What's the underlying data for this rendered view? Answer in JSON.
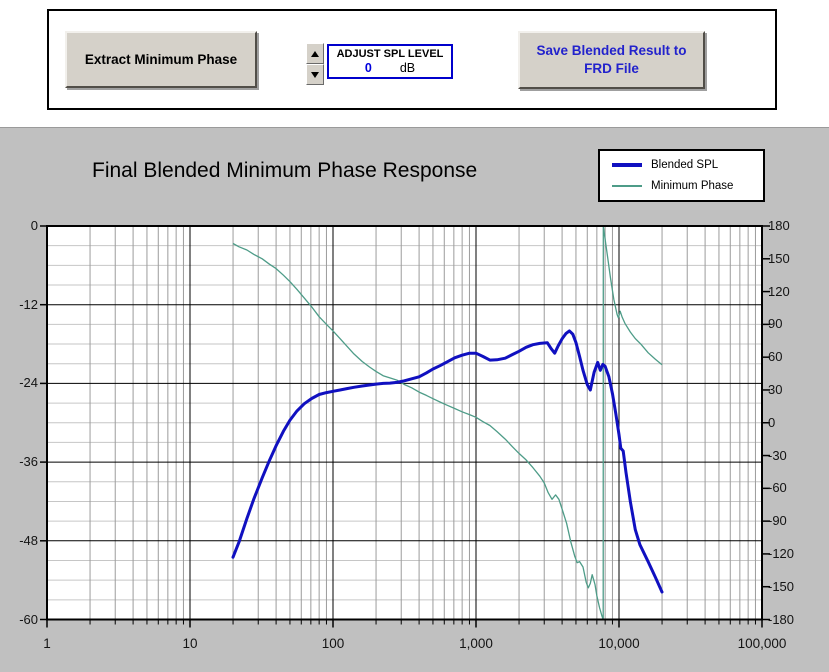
{
  "toolbar": {
    "extract_button_label": "Extract Minimum Phase",
    "adjust_spl": {
      "label": "ADJUST SPL LEVEL",
      "value": "0",
      "unit": "dB"
    },
    "save_button_line1": "Save Blended Result to",
    "save_button_line2": "FRD File"
  },
  "colors": {
    "chart_bg": "#c0c0c0",
    "plot_bg": "#ffffff",
    "grid_major": "#000000",
    "grid_minor_v": "#9c9c9c",
    "grid_minor_h": "#c6c6c6",
    "spl_line": "#1010c0",
    "phase_line": "#4e9c88",
    "button_face": "#d5d1c9",
    "save_button_text": "#2222cc",
    "spl_value_text": "#0000dd",
    "spl_box_border": "#0000cc"
  },
  "chart_data": {
    "type": "line",
    "title": "Final Blended Minimum Phase Response",
    "x_axis": {
      "scale": "log",
      "min": 1,
      "max": 100000,
      "tick_values": [
        1,
        10,
        100,
        1000,
        10000,
        100000
      ],
      "tick_labels": [
        "1",
        "10",
        "100",
        "1,000",
        "10,000",
        "100,000"
      ]
    },
    "y_left_axis": {
      "min": -60,
      "max": 0,
      "major_step": 12,
      "minor_step": 3,
      "tick_values": [
        0,
        -12,
        -24,
        -36,
        -48,
        -60
      ],
      "tick_labels": [
        "0",
        "-12",
        "-24",
        "-36",
        "-48",
        "-60"
      ]
    },
    "y_right_axis": {
      "min": -180,
      "max": 180,
      "major_step": 30,
      "tick_values": [
        180,
        150,
        120,
        90,
        60,
        30,
        0,
        -30,
        -60,
        -90,
        -120,
        -150,
        -180
      ],
      "tick_labels": [
        "180",
        "150",
        "120",
        "90",
        "60",
        "30",
        "0",
        "-30",
        "-60",
        "-90",
        "-120",
        "-150",
        "-180"
      ]
    },
    "legend": [
      {
        "label": "Blended SPL",
        "color": "#1010c0",
        "thickness": 4
      },
      {
        "label": "Minimum Phase",
        "color": "#4e9c88",
        "thickness": 2
      }
    ],
    "series": [
      {
        "name": "Blended SPL",
        "axis": "left",
        "color": "#1010c0",
        "width": 3,
        "points": [
          [
            20,
            -50.5
          ],
          [
            22,
            -48.2
          ],
          [
            25,
            -44.6
          ],
          [
            28,
            -41.6
          ],
          [
            32,
            -38.4
          ],
          [
            36,
            -35.7
          ],
          [
            40,
            -33.5
          ],
          [
            45,
            -31.3
          ],
          [
            50,
            -29.6
          ],
          [
            56,
            -28.2
          ],
          [
            63,
            -27.1
          ],
          [
            71,
            -26.3
          ],
          [
            80,
            -25.7
          ],
          [
            90,
            -25.4
          ],
          [
            100,
            -25.2
          ],
          [
            112,
            -25.0
          ],
          [
            125,
            -24.8
          ],
          [
            140,
            -24.6
          ],
          [
            160,
            -24.4
          ],
          [
            180,
            -24.25
          ],
          [
            200,
            -24.1
          ],
          [
            224,
            -24.0
          ],
          [
            250,
            -23.95
          ],
          [
            280,
            -23.85
          ],
          [
            315,
            -23.6
          ],
          [
            355,
            -23.3
          ],
          [
            400,
            -23.0
          ],
          [
            450,
            -22.4
          ],
          [
            500,
            -21.8
          ],
          [
            560,
            -21.3
          ],
          [
            630,
            -20.7
          ],
          [
            710,
            -20.1
          ],
          [
            800,
            -19.7
          ],
          [
            900,
            -19.4
          ],
          [
            1000,
            -19.4
          ],
          [
            1120,
            -19.9
          ],
          [
            1250,
            -20.45
          ],
          [
            1400,
            -20.4
          ],
          [
            1600,
            -20.15
          ],
          [
            1800,
            -19.6
          ],
          [
            2000,
            -19.1
          ],
          [
            2240,
            -18.5
          ],
          [
            2500,
            -18.1
          ],
          [
            2800,
            -17.9
          ],
          [
            3150,
            -17.8
          ],
          [
            3350,
            -18.7
          ],
          [
            3550,
            -19.4
          ],
          [
            3750,
            -18.3
          ],
          [
            4000,
            -17.2
          ],
          [
            4250,
            -16.4
          ],
          [
            4500,
            -16.0
          ],
          [
            4750,
            -16.5
          ],
          [
            5000,
            -17.8
          ],
          [
            5300,
            -19.9
          ],
          [
            5600,
            -22.0
          ],
          [
            6000,
            -24.2
          ],
          [
            6300,
            -25.0
          ],
          [
            6700,
            -22.3
          ],
          [
            7100,
            -20.8
          ],
          [
            7400,
            -22.0
          ],
          [
            7700,
            -21.1
          ],
          [
            8000,
            -21.4
          ],
          [
            8500,
            -23.0
          ],
          [
            9000,
            -25.6
          ],
          [
            9500,
            -28.6
          ],
          [
            10000,
            -31.8
          ],
          [
            10300,
            -33.9
          ],
          [
            10700,
            -34.3
          ],
          [
            11200,
            -37.6
          ],
          [
            12000,
            -42.0
          ],
          [
            13000,
            -46.3
          ],
          [
            14000,
            -48.6
          ],
          [
            16000,
            -51.2
          ],
          [
            18000,
            -53.6
          ],
          [
            20000,
            -55.8
          ]
        ]
      },
      {
        "name": "Minimum Phase",
        "axis": "right",
        "color": "#4e9c88",
        "width": 1.3,
        "points": [
          [
            20,
            164
          ],
          [
            22,
            161
          ],
          [
            25,
            158
          ],
          [
            28,
            154
          ],
          [
            32,
            150
          ],
          [
            36,
            145
          ],
          [
            40,
            141
          ],
          [
            45,
            135
          ],
          [
            50,
            129
          ],
          [
            56,
            122
          ],
          [
            63,
            114
          ],
          [
            71,
            106
          ],
          [
            80,
            97
          ],
          [
            90,
            90
          ],
          [
            100,
            84
          ],
          [
            112,
            77
          ],
          [
            125,
            70
          ],
          [
            140,
            63
          ],
          [
            160,
            56
          ],
          [
            180,
            51
          ],
          [
            200,
            47
          ],
          [
            224,
            43
          ],
          [
            250,
            41
          ],
          [
            280,
            39
          ],
          [
            315,
            35
          ],
          [
            355,
            32
          ],
          [
            400,
            28
          ],
          [
            450,
            25
          ],
          [
            500,
            22
          ],
          [
            560,
            19
          ],
          [
            630,
            16
          ],
          [
            710,
            13
          ],
          [
            800,
            10
          ],
          [
            900,
            7.5
          ],
          [
            1000,
            5
          ],
          [
            1120,
            1
          ],
          [
            1250,
            -2.5
          ],
          [
            1400,
            -8
          ],
          [
            1600,
            -15
          ],
          [
            1800,
            -22
          ],
          [
            2000,
            -28
          ],
          [
            2240,
            -34
          ],
          [
            2500,
            -41
          ],
          [
            2800,
            -49
          ],
          [
            3000,
            -55
          ],
          [
            3200,
            -64
          ],
          [
            3400,
            -70
          ],
          [
            3600,
            -66
          ],
          [
            3800,
            -70
          ],
          [
            4000,
            -79
          ],
          [
            4300,
            -92
          ],
          [
            4600,
            -109
          ],
          [
            4900,
            -122
          ],
          [
            5100,
            -128
          ],
          [
            5300,
            -127
          ],
          [
            5600,
            -132
          ],
          [
            5900,
            -146
          ],
          [
            6100,
            -151
          ],
          [
            6300,
            -147
          ],
          [
            6500,
            -139
          ],
          [
            6800,
            -148
          ],
          [
            7000,
            -158
          ],
          [
            7300,
            -169
          ],
          [
            7600,
            -177
          ],
          [
            7750,
            -180
          ],
          [
            7760,
            180
          ],
          [
            8000,
            168
          ],
          [
            8300,
            153
          ],
          [
            8700,
            133
          ],
          [
            9200,
            113
          ],
          [
            9700,
            99
          ],
          [
            9900,
            96
          ],
          [
            10200,
            102
          ],
          [
            10500,
            97
          ],
          [
            11000,
            91
          ],
          [
            12000,
            83
          ],
          [
            13000,
            77
          ],
          [
            14200,
            72
          ],
          [
            16000,
            64
          ],
          [
            18000,
            58
          ],
          [
            20000,
            53
          ]
        ]
      }
    ]
  }
}
